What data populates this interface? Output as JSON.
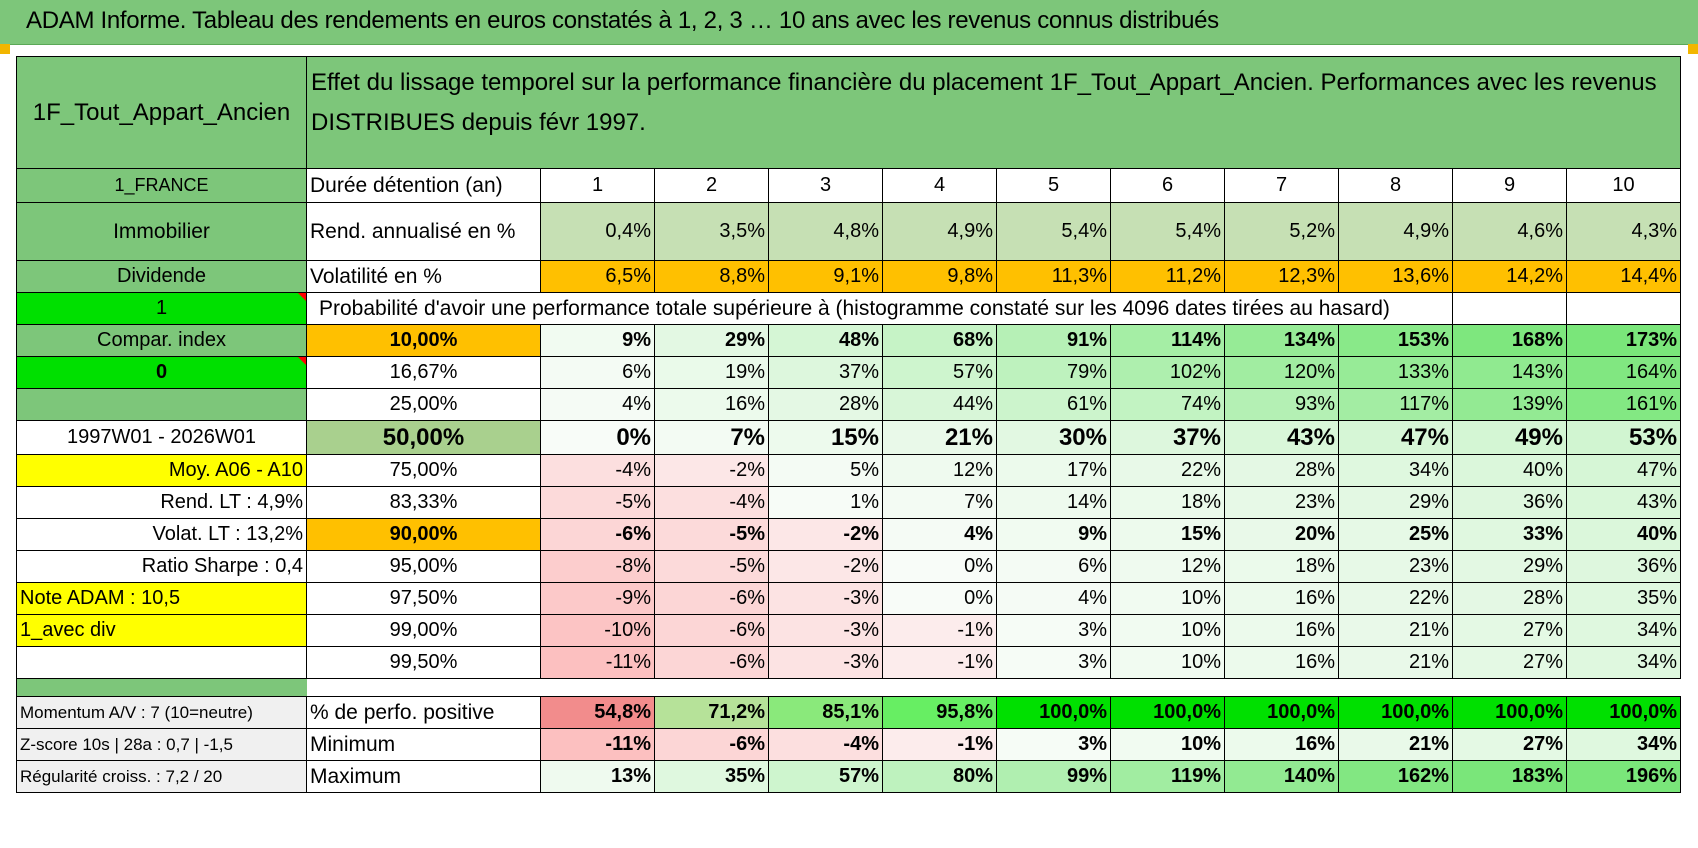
{
  "banner_title": "ADAM Informe. Tableau des rendements en euros constatés à 1, 2, 3 … 10 ans avec les revenus connus distribués",
  "fund_name": "1F_Tout_Appart_Ancien",
  "description": "Effet du lissage temporel sur la performance financière du placement 1F_Tout_Appart_Ancien. Performances avec les revenus DISTRIBUES depuis févr 1997.",
  "side": {
    "country": "1_FRANCE",
    "asset_class": "Immobilier",
    "income_type": "Dividende",
    "selector_1": "1",
    "compar_index": "Compar. index",
    "selector_0": "0",
    "period": "1997W01 - 2026W01",
    "moy": "Moy. A06 - A10",
    "rend_lt": "Rend. LT :    4,9%",
    "volat_lt": "Volat. LT :    13,2%",
    "sharpe": "Ratio Sharpe :     0,4",
    "note": "Note ADAM : 10,5",
    "avec_div": "1_avec div",
    "momentum": "Momentum A/V : 7 (10=neutre)",
    "zscore": "Z-score 10s | 28a : 0,7 | -1,5",
    "regularite": "Régularité croiss. : 7,2 / 20"
  },
  "labels": {
    "duration": "Durée détention (an)",
    "rend": "Rend. annualisé en %",
    "vol": "Volatilité en %",
    "proba": "Probabilité d'avoir une performance totale supérieure à (histogramme constaté sur les 4096 dates tirées au hasard)",
    "pct_pos": "% de perfo. positive",
    "minimum": "Minimum",
    "maximum": "Maximum"
  },
  "years": [
    "1",
    "2",
    "3",
    "4",
    "5",
    "6",
    "7",
    "8",
    "9",
    "10"
  ],
  "rend": [
    "0,4%",
    "3,5%",
    "4,8%",
    "4,9%",
    "5,4%",
    "5,4%",
    "5,2%",
    "4,9%",
    "4,6%",
    "4,3%"
  ],
  "vol": [
    "6,5%",
    "8,8%",
    "9,1%",
    "9,8%",
    "11,3%",
    "11,2%",
    "12,3%",
    "13,6%",
    "14,2%",
    "14,4%"
  ],
  "quantiles": [
    {
      "q": "10,00%",
      "v": [
        "9%",
        "29%",
        "48%",
        "68%",
        "91%",
        "114%",
        "134%",
        "153%",
        "168%",
        "173%"
      ]
    },
    {
      "q": "16,67%",
      "v": [
        "6%",
        "19%",
        "37%",
        "57%",
        "79%",
        "102%",
        "120%",
        "133%",
        "143%",
        "164%"
      ]
    },
    {
      "q": "25,00%",
      "v": [
        "4%",
        "16%",
        "28%",
        "44%",
        "61%",
        "74%",
        "93%",
        "117%",
        "139%",
        "161%"
      ]
    },
    {
      "q": "50,00%",
      "v": [
        "0%",
        "7%",
        "15%",
        "21%",
        "30%",
        "37%",
        "43%",
        "47%",
        "49%",
        "53%"
      ]
    },
    {
      "q": "75,00%",
      "v": [
        "-4%",
        "-2%",
        "5%",
        "12%",
        "17%",
        "22%",
        "28%",
        "34%",
        "40%",
        "47%"
      ]
    },
    {
      "q": "83,33%",
      "v": [
        "-5%",
        "-4%",
        "1%",
        "7%",
        "14%",
        "18%",
        "23%",
        "29%",
        "36%",
        "43%"
      ]
    },
    {
      "q": "90,00%",
      "v": [
        "-6%",
        "-5%",
        "-2%",
        "4%",
        "9%",
        "15%",
        "20%",
        "25%",
        "33%",
        "40%"
      ]
    },
    {
      "q": "95,00%",
      "v": [
        "-8%",
        "-5%",
        "-2%",
        "0%",
        "6%",
        "12%",
        "18%",
        "23%",
        "29%",
        "36%"
      ]
    },
    {
      "q": "97,50%",
      "v": [
        "-9%",
        "-6%",
        "-3%",
        "0%",
        "4%",
        "10%",
        "16%",
        "22%",
        "28%",
        "35%"
      ]
    },
    {
      "q": "99,00%",
      "v": [
        "-10%",
        "-6%",
        "-3%",
        "-1%",
        "3%",
        "10%",
        "16%",
        "21%",
        "27%",
        "34%"
      ]
    },
    {
      "q": "99,50%",
      "v": [
        "-11%",
        "-6%",
        "-3%",
        "-1%",
        "3%",
        "10%",
        "16%",
        "21%",
        "27%",
        "34%"
      ]
    }
  ],
  "pct_pos": [
    "54,8%",
    "71,2%",
    "85,1%",
    "95,8%",
    "100,0%",
    "100,0%",
    "100,0%",
    "100,0%",
    "100,0%",
    "100,0%"
  ],
  "minimum": [
    "-11%",
    "-6%",
    "-4%",
    "-1%",
    "3%",
    "10%",
    "16%",
    "21%",
    "27%",
    "34%"
  ],
  "maximum": [
    "13%",
    "35%",
    "57%",
    "80%",
    "99%",
    "119%",
    "140%",
    "162%",
    "183%",
    "196%"
  ]
}
